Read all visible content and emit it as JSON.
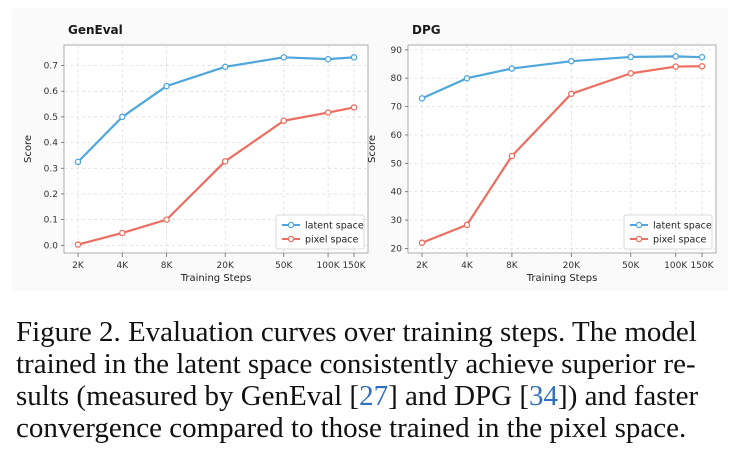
{
  "chart_data": [
    {
      "type": "line",
      "title": "GenEval",
      "xlabel": "Training Steps",
      "ylabel": "Score",
      "x_scale": "log",
      "categories": [
        "2K",
        "4K",
        "8K",
        "20K",
        "50K",
        "100K",
        "150K"
      ],
      "x": [
        2000,
        4000,
        8000,
        20000,
        50000,
        100000,
        150000
      ],
      "ylim": [
        -0.03,
        0.78
      ],
      "yticks": [
        0.0,
        0.1,
        0.2,
        0.3,
        0.4,
        0.5,
        0.6,
        0.7
      ],
      "ytick_labels": [
        "0.0",
        "0.1",
        "0.2",
        "0.3",
        "0.4",
        "0.5",
        "0.6",
        "0.7"
      ],
      "grid": true,
      "legend_position": "bottom-right",
      "series": [
        {
          "name": "latent space",
          "color": "#4ea6dc",
          "values": [
            0.325,
            0.5,
            0.62,
            0.695,
            0.732,
            0.725,
            0.732
          ]
        },
        {
          "name": "pixel space",
          "color": "#ec6e60",
          "values": [
            0.003,
            0.048,
            0.1,
            0.327,
            0.485,
            0.517,
            0.537
          ]
        }
      ]
    },
    {
      "type": "line",
      "title": "DPG",
      "xlabel": "Training Steps",
      "ylabel": "Score",
      "x_scale": "log",
      "categories": [
        "2K",
        "4K",
        "8K",
        "20K",
        "50K",
        "100K",
        "150K"
      ],
      "x": [
        2000,
        4000,
        8000,
        20000,
        50000,
        100000,
        150000
      ],
      "ylim": [
        18.4,
        91.7
      ],
      "yticks": [
        20,
        30,
        40,
        50,
        60,
        70,
        80,
        90
      ],
      "ytick_labels": [
        "20",
        "30",
        "40",
        "50",
        "60",
        "70",
        "80",
        "90"
      ],
      "grid": true,
      "legend_position": "bottom-right",
      "series": [
        {
          "name": "latent space",
          "color": "#4ea6dc",
          "values": [
            72.9,
            80.0,
            83.4,
            86.0,
            87.5,
            87.7,
            87.4
          ]
        },
        {
          "name": "pixel space",
          "color": "#ec6e60",
          "values": [
            22.0,
            28.3,
            52.6,
            74.5,
            81.7,
            84.1,
            84.2
          ]
        }
      ]
    }
  ],
  "caption": {
    "lines": [
      [
        {
          "text": "Figure 2. Evaluation curves over training steps. The model"
        }
      ],
      [
        {
          "text": "trained in the latent space consistently achieve superior re-"
        }
      ],
      [
        {
          "text": "sults (measured by GenEval ["
        },
        {
          "text": "27",
          "link": true
        },
        {
          "text": "] and DPG ["
        },
        {
          "text": "34",
          "link": true
        },
        {
          "text": "]) and faster"
        }
      ],
      [
        {
          "text": "convergence compared to those trained in the pixel space."
        }
      ]
    ]
  }
}
